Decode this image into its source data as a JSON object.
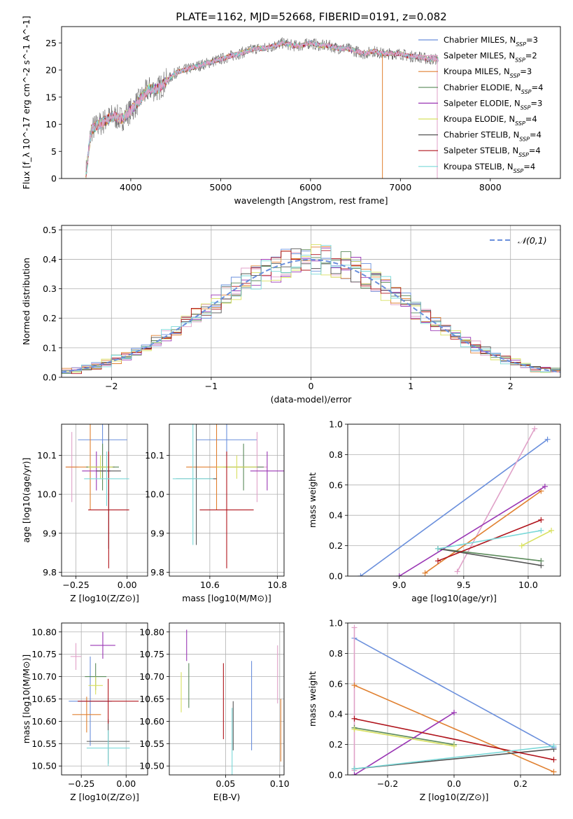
{
  "figure_title": "PLATE=1162, MJD=52668, FIBERID=0191, z=0.082",
  "colors": {
    "series": [
      "#6a8fdc",
      "#e0a1c8",
      "#e08030",
      "#5a8a5a",
      "#9a36b4",
      "#d8e060",
      "#555555",
      "#b0141c",
      "#7ad8d8"
    ]
  },
  "chart_data": [
    {
      "id": "spectrum",
      "type": "line",
      "title": "PLATE=1162, MJD=52668, FIBERID=0191, z=0.082",
      "xlabel": "wavelength [Angstrom, rest frame]",
      "ylabel": "Flux [f_λ 10^-17 erg cm^-2 s^-1 A^-1]",
      "xlim": [
        3230,
        8780
      ],
      "ylim": [
        0,
        28
      ],
      "xticks": [
        4000,
        5000,
        6000,
        7000,
        8000
      ],
      "yticks": [
        0,
        5,
        10,
        15,
        20,
        25
      ],
      "grid": false,
      "legend_position": "right",
      "x": [
        3500,
        3600,
        3700,
        3800,
        3900,
        4000,
        4100,
        4200,
        4300,
        4400,
        4500,
        4600,
        4700,
        4800,
        4900,
        5000,
        5100,
        5200,
        5300,
        5400,
        5500,
        5600,
        5700,
        5800,
        5900,
        6000,
        6100,
        6200,
        6300,
        6400,
        6500,
        6600,
        6700,
        6800,
        6900,
        7000,
        7100,
        7200,
        7300,
        7400
      ],
      "y": [
        8,
        9.5,
        10.5,
        11.5,
        11,
        12.5,
        14.5,
        16.5,
        16.5,
        18,
        19.5,
        20,
        20.5,
        21,
        21.5,
        22,
        22.5,
        23,
        23.5,
        24,
        24,
        24.5,
        25,
        24.5,
        24.5,
        25,
        24.5,
        24.5,
        24,
        24,
        23.5,
        23,
        23.5,
        23,
        23,
        23,
        22.5,
        22.5,
        22,
        22
      ],
      "series": [
        {
          "name": "Chabrier MILES, N_SSP=3"
        },
        {
          "name": "Salpeter MILES, N_SSP=2"
        },
        {
          "name": "Kroupa MILES, N_SSP=3"
        },
        {
          "name": "Chabrier ELODIE, N_SSP=4"
        },
        {
          "name": "Salpeter ELODIE, N_SSP=3"
        },
        {
          "name": "Kroupa ELODIE, N_SSP=4"
        },
        {
          "name": "Chabrier STELIB, N_SSP=4"
        },
        {
          "name": "Salpeter STELIB, N_SSP=4"
        },
        {
          "name": "Kroupa STELIB, N_SSP=4"
        }
      ]
    },
    {
      "id": "residuals",
      "type": "line",
      "xlabel": "(data-model)/error",
      "ylabel": "Normed distribution",
      "xlim": [
        -2.5,
        2.5
      ],
      "ylim": [
        0,
        0.515
      ],
      "xticks": [
        -2,
        -1,
        0,
        1,
        2
      ],
      "yticks": [
        0.0,
        0.1,
        0.2,
        0.3,
        0.4,
        0.5
      ],
      "grid": true,
      "legend_position": "top-right",
      "legend": "𝒩(0,1)",
      "reference_curve": "standard normal pdf",
      "bin_edges_range": [
        -2.5,
        2.5
      ],
      "bin_width": 0.1
    },
    {
      "id": "age-vs-Z",
      "type": "scatter",
      "xlabel": "Z [log10(Z/Z⊙)]",
      "ylabel": "age  [log10(age/yr)]",
      "xlim": [
        -0.32,
        0.1
      ],
      "ylim": [
        9.79,
        10.18
      ],
      "xticks": [
        -0.25,
        0.0
      ],
      "xtick_labels": [
        "−0.25",
        "0.00"
      ],
      "yticks": [
        9.8,
        9.9,
        10.0,
        10.1
      ],
      "grid": true,
      "points": [
        {
          "x": -0.12,
          "y": 10.14,
          "xerr": 0.12,
          "yerr": 0.04
        },
        {
          "x": -0.27,
          "y": 10.07,
          "xerr": 0.03,
          "yerr": 0.09
        },
        {
          "x": -0.18,
          "y": 10.07,
          "xerr": 0.12,
          "yerr": 0.11
        },
        {
          "x": -0.12,
          "y": 10.07,
          "xerr": 0.08,
          "yerr": 0.06
        },
        {
          "x": -0.15,
          "y": 10.06,
          "xerr": 0.07,
          "yerr": 0.05
        },
        {
          "x": -0.13,
          "y": 10.07,
          "xerr": 0.06,
          "yerr": 0.03
        },
        {
          "x": -0.09,
          "y": 10.06,
          "xerr": 0.06,
          "yerr": 0.2
        },
        {
          "x": -0.09,
          "y": 9.96,
          "xerr": 0.1,
          "yerr": 0.15
        },
        {
          "x": -0.1,
          "y": 10.04,
          "xerr": 0.11,
          "yerr": 0.07
        }
      ]
    },
    {
      "id": "age-vs-mass",
      "type": "scatter",
      "xlabel": "mass [log10(M/M⊙)]",
      "ylabel": "",
      "xlim": [
        10.48,
        10.82
      ],
      "ylim": [
        9.79,
        10.18
      ],
      "xticks": [
        10.6,
        10.8
      ],
      "yticks": [
        9.8,
        9.9,
        10.0,
        10.1
      ],
      "grid": true,
      "points": [
        {
          "x": 10.65,
          "y": 10.14,
          "xerr": 0.09,
          "yerr": 0.04
        },
        {
          "x": 10.74,
          "y": 10.07,
          "xerr": 0.03,
          "yerr": 0.09
        },
        {
          "x": 10.62,
          "y": 10.07,
          "xerr": 0.09,
          "yerr": 0.11
        },
        {
          "x": 10.7,
          "y": 10.07,
          "xerr": 0.06,
          "yerr": 0.06
        },
        {
          "x": 10.77,
          "y": 10.06,
          "xerr": 0.05,
          "yerr": 0.05
        },
        {
          "x": 10.68,
          "y": 10.07,
          "xerr": 0.06,
          "yerr": 0.03
        },
        {
          "x": 10.56,
          "y": 10.04,
          "xerr": 0.06,
          "yerr": 0.17
        },
        {
          "x": 10.65,
          "y": 9.96,
          "xerr": 0.08,
          "yerr": 0.15
        },
        {
          "x": 10.55,
          "y": 10.04,
          "xerr": 0.06,
          "yerr": 0.17
        }
      ]
    },
    {
      "id": "weight-vs-age",
      "type": "line",
      "xlabel": "age  [log10(age/yr)]",
      "ylabel": "mass weight",
      "xlim": [
        8.6,
        10.25
      ],
      "ylim": [
        0.0,
        1.0
      ],
      "xticks": [
        9.0,
        9.5,
        10.0
      ],
      "yticks": [
        0.0,
        0.2,
        0.4,
        0.6,
        0.8,
        1.0
      ],
      "grid": true,
      "series": [
        {
          "x": [
            8.7,
            10.15
          ],
          "y": [
            0.0,
            0.9
          ]
        },
        {
          "x": [
            9.45,
            10.05
          ],
          "y": [
            0.03,
            0.97
          ]
        },
        {
          "x": [
            9.2,
            10.1
          ],
          "y": [
            0.02,
            0.56
          ]
        },
        {
          "x": [
            9.3,
            10.1
          ],
          "y": [
            0.18,
            0.1
          ]
        },
        {
          "x": [
            9.0,
            10.13
          ],
          "y": [
            0.0,
            0.59
          ]
        },
        {
          "x": [
            9.95,
            10.18
          ],
          "y": [
            0.2,
            0.3
          ]
        },
        {
          "x": [
            9.3,
            10.1
          ],
          "y": [
            0.18,
            0.07
          ]
        },
        {
          "x": [
            9.3,
            10.1
          ],
          "y": [
            0.1,
            0.37
          ]
        },
        {
          "x": [
            9.3,
            10.1
          ],
          "y": [
            0.18,
            0.3
          ]
        }
      ]
    },
    {
      "id": "mass-vs-Z",
      "type": "scatter",
      "xlabel": "Z [log10(Z/Z⊙)]",
      "ylabel": "mass [log10(M/M⊙)]",
      "xlim": [
        -0.36,
        0.12
      ],
      "ylim": [
        10.48,
        10.82
      ],
      "xticks": [
        -0.25,
        0.0
      ],
      "xtick_labels": [
        "−0.25",
        "0.00"
      ],
      "yticks": [
        10.5,
        10.55,
        10.6,
        10.65,
        10.7,
        10.75,
        10.8
      ],
      "grid": true,
      "points": [
        {
          "x": -0.2,
          "y": 10.645,
          "xerr": 0.12,
          "yerr": 0.1
        },
        {
          "x": -0.28,
          "y": 10.745,
          "xerr": 0.03,
          "yerr": 0.03
        },
        {
          "x": -0.22,
          "y": 10.615,
          "xerr": 0.08,
          "yerr": 0.04
        },
        {
          "x": -0.17,
          "y": 10.7,
          "xerr": 0.06,
          "yerr": 0.03
        },
        {
          "x": -0.13,
          "y": 10.77,
          "xerr": 0.07,
          "yerr": 0.03
        },
        {
          "x": -0.17,
          "y": 10.68,
          "xerr": 0.04,
          "yerr": 0.02
        },
        {
          "x": -0.1,
          "y": 10.555,
          "xerr": 0.12,
          "yerr": 0.05
        },
        {
          "x": -0.1,
          "y": 10.645,
          "xerr": 0.17,
          "yerr": 0.05
        },
        {
          "x": -0.1,
          "y": 10.54,
          "xerr": 0.12,
          "yerr": 0.04
        }
      ]
    },
    {
      "id": "mass-vs-ebv",
      "type": "scatter",
      "xlabel": "E(B-V)",
      "ylabel": "",
      "xlim": [
        -0.002,
        0.104
      ],
      "ylim": [
        10.48,
        10.82
      ],
      "xticks": [
        0.05,
        0.1
      ],
      "xtick_labels": [
        "0.05",
        "0.10"
      ],
      "yticks": [
        10.5,
        10.55,
        10.6,
        10.65,
        10.7,
        10.75,
        10.8
      ],
      "grid": true,
      "points": [
        {
          "x": 0.074,
          "y": 10.635,
          "yerr": 0.1
        },
        {
          "x": 0.098,
          "y": 10.705,
          "yerr": 0.065
        },
        {
          "x": 0.101,
          "y": 10.58,
          "yerr": 0.07
        },
        {
          "x": 0.016,
          "y": 10.68,
          "yerr": 0.05
        },
        {
          "x": 0.014,
          "y": 10.77,
          "yerr": 0.035
        },
        {
          "x": 0.009,
          "y": 10.665,
          "yerr": 0.045
        },
        {
          "x": 0.057,
          "y": 10.59,
          "yerr": 0.055
        },
        {
          "x": 0.048,
          "y": 10.645,
          "yerr": 0.085
        },
        {
          "x": 0.056,
          "y": 10.54,
          "yerr": 0.09
        }
      ]
    },
    {
      "id": "weight-vs-Z",
      "type": "line",
      "xlabel": "Z [log10(Z/Z⊙)]",
      "ylabel": "mass weight",
      "xlim": [
        -0.32,
        0.32
      ],
      "ylim": [
        0.0,
        1.0
      ],
      "xticks": [
        -0.2,
        0.0,
        0.2
      ],
      "xtick_labels": [
        "−0.2",
        "0.0",
        "0.2"
      ],
      "yticks": [
        0.0,
        0.2,
        0.4,
        0.6,
        0.8,
        1.0
      ],
      "grid": true,
      "series": [
        {
          "x": [
            -0.3,
            0.3
          ],
          "y": [
            0.9,
            0.18
          ]
        },
        {
          "x": [
            -0.3,
            -0.3
          ],
          "y": [
            0.03,
            0.97
          ]
        },
        {
          "x": [
            -0.3,
            0.3
          ],
          "y": [
            0.59,
            0.02
          ]
        },
        {
          "x": [
            -0.3,
            0.0
          ],
          "y": [
            0.31,
            0.2
          ]
        },
        {
          "x": [
            -0.3,
            0.0
          ],
          "y": [
            0.0,
            0.41
          ]
        },
        {
          "x": [
            -0.3,
            0.0
          ],
          "y": [
            0.3,
            0.19
          ]
        },
        {
          "x": [
            -0.3,
            0.3
          ],
          "y": [
            0.04,
            0.17
          ]
        },
        {
          "x": [
            -0.3,
            0.3
          ],
          "y": [
            0.37,
            0.1
          ]
        },
        {
          "x": [
            -0.3,
            0.3
          ],
          "y": [
            0.04,
            0.19
          ]
        }
      ]
    }
  ]
}
